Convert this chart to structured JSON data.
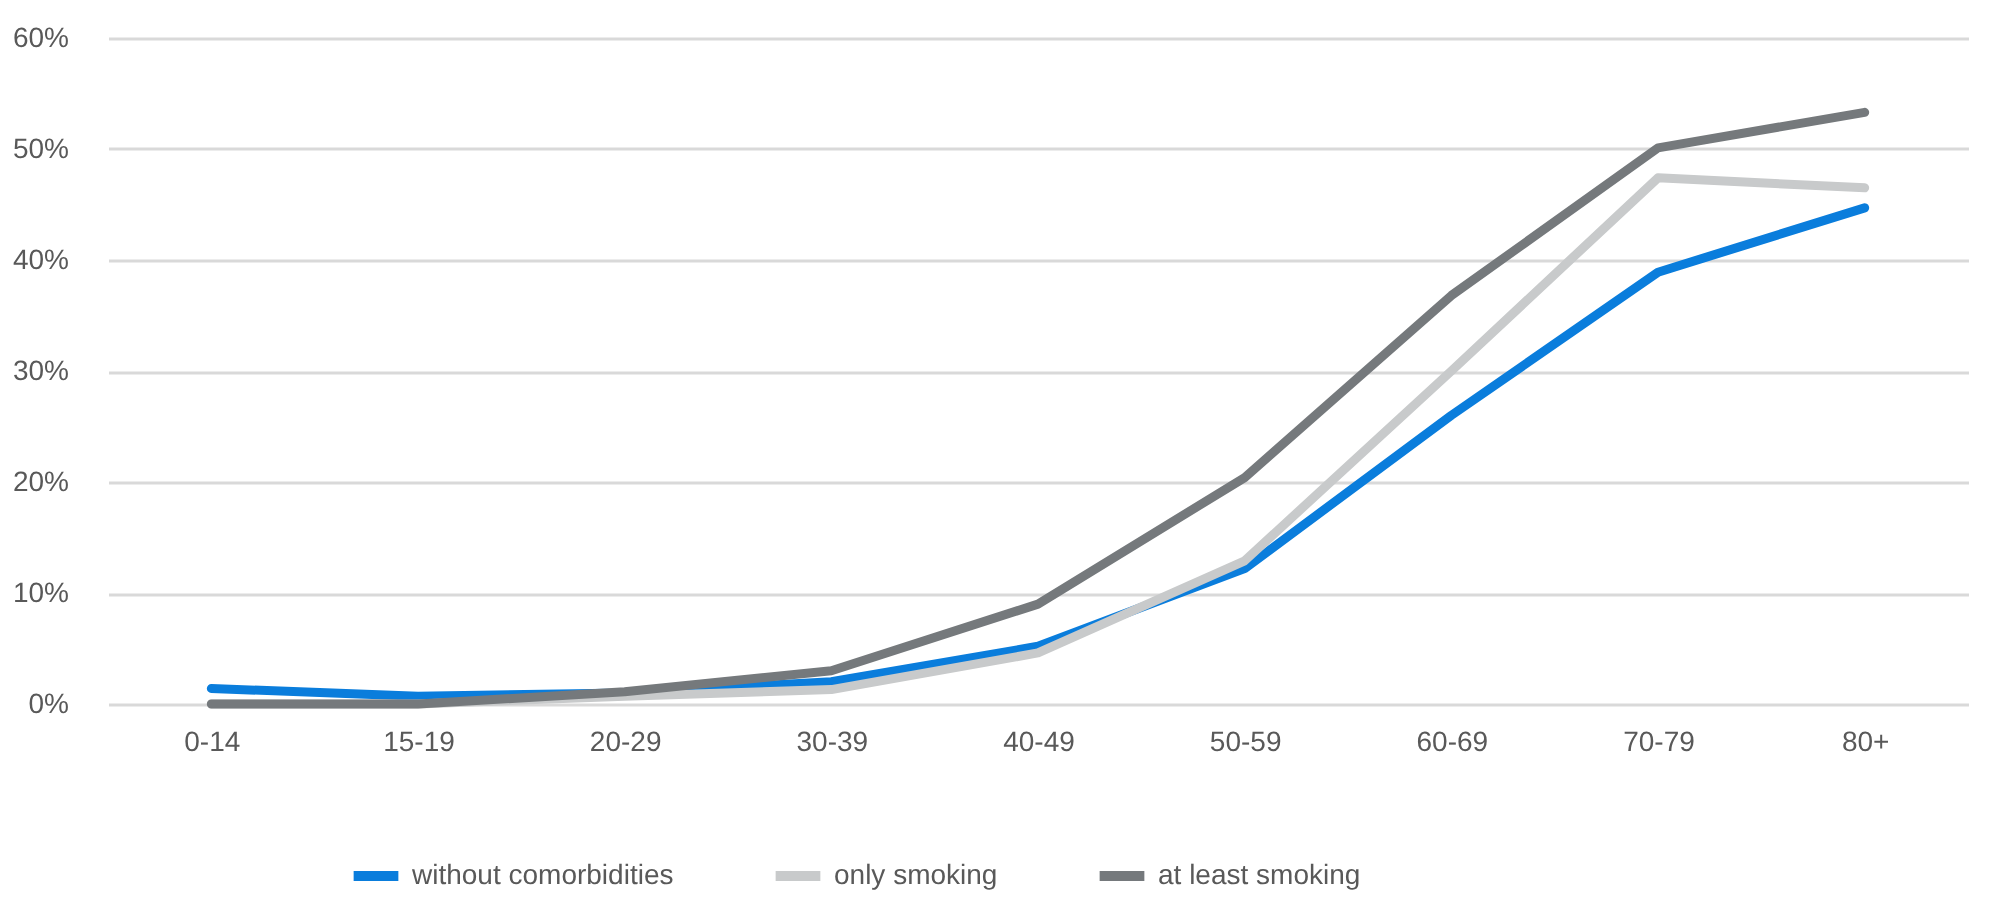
{
  "chart_data": {
    "type": "line",
    "categories": [
      "0-14",
      "15-19",
      "20-29",
      "30-39",
      "40-49",
      "50-59",
      "60-69",
      "70-79",
      "80+"
    ],
    "series": [
      {
        "name": "without comorbidities",
        "color": "#0a7ddc",
        "values": [
          1.4,
          0.7,
          1.0,
          2.0,
          5.2,
          12.2,
          26.0,
          38.9,
          44.7
        ]
      },
      {
        "name": "only smoking",
        "color": "#c8cacb",
        "values": [
          0.0,
          0.0,
          0.7,
          1.3,
          4.6,
          12.9,
          30.0,
          47.4,
          46.5
        ]
      },
      {
        "name": "at least smoking",
        "color": "#75797c",
        "values": [
          0.0,
          0.0,
          1.1,
          3.0,
          9.0,
          20.4,
          36.8,
          50.1,
          53.3
        ]
      }
    ],
    "ylim": [
      0,
      60
    ],
    "yticks": [
      {
        "value": 0,
        "label": "0%"
      },
      {
        "value": 10,
        "label": "10%"
      },
      {
        "value": 20,
        "label": "20%"
      },
      {
        "value": 30,
        "label": "30%"
      },
      {
        "value": 40,
        "label": "40%"
      },
      {
        "value": 50,
        "label": "50%"
      },
      {
        "value": 60,
        "label": "60%"
      }
    ],
    "grid": "y",
    "legend": "bottom",
    "marker": "none",
    "line_style": "solid"
  }
}
